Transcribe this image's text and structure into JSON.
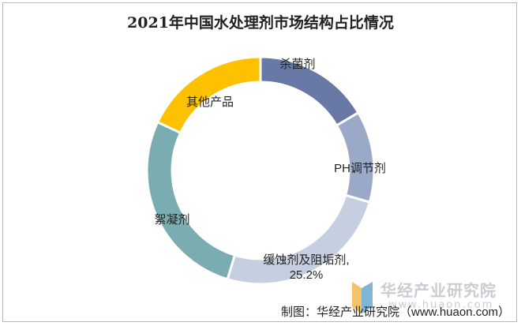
{
  "title": "2021年中国水处理剂市场结构占比情况",
  "chart_data": {
    "type": "pie",
    "style": "donut",
    "title": "2021年中国水处理剂市场结构占比情况",
    "slices": [
      {
        "label": "杀菌剂",
        "value": 16.5,
        "color": "#6979a5"
      },
      {
        "label": "PH调节剂",
        "value": 13.0,
        "color": "#9ba9c8"
      },
      {
        "label": "缓蚀剂及阻垢剂",
        "value": 25.2,
        "value_label": "25.2%",
        "color": "#c6cfe1"
      },
      {
        "label": "絮凝剂",
        "value": 27.3,
        "color": "#79adb1"
      },
      {
        "label": "其他产品",
        "value": 18.0,
        "color": "#fec100"
      }
    ],
    "legend": "none"
  },
  "watermark": {
    "name": "华经产业研究院",
    "url": "www.huaon.com"
  },
  "source": "制图：华经产业研究院（www.huaon.com）"
}
